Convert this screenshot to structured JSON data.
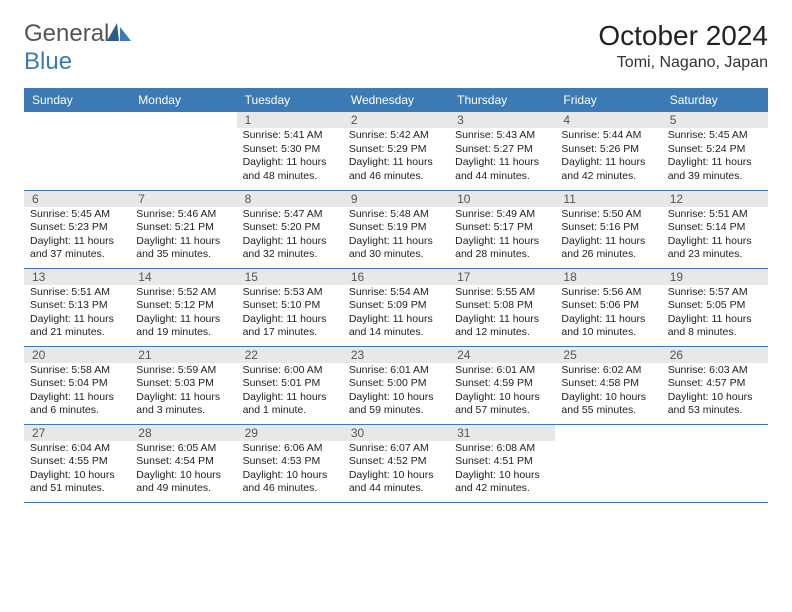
{
  "brand": {
    "part1": "General",
    "part2": "Blue"
  },
  "title": "October 2024",
  "location": "Tomi, Nagano, Japan",
  "colors": {
    "header_blue": "#3b7ab5",
    "daynum_bg": "#e8e8e8",
    "text": "#222222"
  },
  "weekdays": [
    "Sunday",
    "Monday",
    "Tuesday",
    "Wednesday",
    "Thursday",
    "Friday",
    "Saturday"
  ],
  "weeks": [
    [
      null,
      null,
      {
        "n": "1",
        "sr": "5:41 AM",
        "ss": "5:30 PM",
        "dl": "11 hours and 48 minutes."
      },
      {
        "n": "2",
        "sr": "5:42 AM",
        "ss": "5:29 PM",
        "dl": "11 hours and 46 minutes."
      },
      {
        "n": "3",
        "sr": "5:43 AM",
        "ss": "5:27 PM",
        "dl": "11 hours and 44 minutes."
      },
      {
        "n": "4",
        "sr": "5:44 AM",
        "ss": "5:26 PM",
        "dl": "11 hours and 42 minutes."
      },
      {
        "n": "5",
        "sr": "5:45 AM",
        "ss": "5:24 PM",
        "dl": "11 hours and 39 minutes."
      }
    ],
    [
      {
        "n": "6",
        "sr": "5:45 AM",
        "ss": "5:23 PM",
        "dl": "11 hours and 37 minutes."
      },
      {
        "n": "7",
        "sr": "5:46 AM",
        "ss": "5:21 PM",
        "dl": "11 hours and 35 minutes."
      },
      {
        "n": "8",
        "sr": "5:47 AM",
        "ss": "5:20 PM",
        "dl": "11 hours and 32 minutes."
      },
      {
        "n": "9",
        "sr": "5:48 AM",
        "ss": "5:19 PM",
        "dl": "11 hours and 30 minutes."
      },
      {
        "n": "10",
        "sr": "5:49 AM",
        "ss": "5:17 PM",
        "dl": "11 hours and 28 minutes."
      },
      {
        "n": "11",
        "sr": "5:50 AM",
        "ss": "5:16 PM",
        "dl": "11 hours and 26 minutes."
      },
      {
        "n": "12",
        "sr": "5:51 AM",
        "ss": "5:14 PM",
        "dl": "11 hours and 23 minutes."
      }
    ],
    [
      {
        "n": "13",
        "sr": "5:51 AM",
        "ss": "5:13 PM",
        "dl": "11 hours and 21 minutes."
      },
      {
        "n": "14",
        "sr": "5:52 AM",
        "ss": "5:12 PM",
        "dl": "11 hours and 19 minutes."
      },
      {
        "n": "15",
        "sr": "5:53 AM",
        "ss": "5:10 PM",
        "dl": "11 hours and 17 minutes."
      },
      {
        "n": "16",
        "sr": "5:54 AM",
        "ss": "5:09 PM",
        "dl": "11 hours and 14 minutes."
      },
      {
        "n": "17",
        "sr": "5:55 AM",
        "ss": "5:08 PM",
        "dl": "11 hours and 12 minutes."
      },
      {
        "n": "18",
        "sr": "5:56 AM",
        "ss": "5:06 PM",
        "dl": "11 hours and 10 minutes."
      },
      {
        "n": "19",
        "sr": "5:57 AM",
        "ss": "5:05 PM",
        "dl": "11 hours and 8 minutes."
      }
    ],
    [
      {
        "n": "20",
        "sr": "5:58 AM",
        "ss": "5:04 PM",
        "dl": "11 hours and 6 minutes."
      },
      {
        "n": "21",
        "sr": "5:59 AM",
        "ss": "5:03 PM",
        "dl": "11 hours and 3 minutes."
      },
      {
        "n": "22",
        "sr": "6:00 AM",
        "ss": "5:01 PM",
        "dl": "11 hours and 1 minute."
      },
      {
        "n": "23",
        "sr": "6:01 AM",
        "ss": "5:00 PM",
        "dl": "10 hours and 59 minutes."
      },
      {
        "n": "24",
        "sr": "6:01 AM",
        "ss": "4:59 PM",
        "dl": "10 hours and 57 minutes."
      },
      {
        "n": "25",
        "sr": "6:02 AM",
        "ss": "4:58 PM",
        "dl": "10 hours and 55 minutes."
      },
      {
        "n": "26",
        "sr": "6:03 AM",
        "ss": "4:57 PM",
        "dl": "10 hours and 53 minutes."
      }
    ],
    [
      {
        "n": "27",
        "sr": "6:04 AM",
        "ss": "4:55 PM",
        "dl": "10 hours and 51 minutes."
      },
      {
        "n": "28",
        "sr": "6:05 AM",
        "ss": "4:54 PM",
        "dl": "10 hours and 49 minutes."
      },
      {
        "n": "29",
        "sr": "6:06 AM",
        "ss": "4:53 PM",
        "dl": "10 hours and 46 minutes."
      },
      {
        "n": "30",
        "sr": "6:07 AM",
        "ss": "4:52 PM",
        "dl": "10 hours and 44 minutes."
      },
      {
        "n": "31",
        "sr": "6:08 AM",
        "ss": "4:51 PM",
        "dl": "10 hours and 42 minutes."
      },
      null,
      null
    ]
  ],
  "labels": {
    "sunrise": "Sunrise:",
    "sunset": "Sunset:",
    "daylight": "Daylight:"
  }
}
